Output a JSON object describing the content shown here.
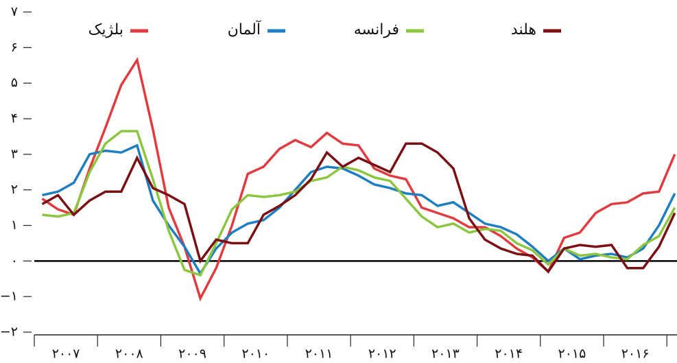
{
  "chart_data": {
    "type": "line",
    "x": [
      2007.125,
      2007.375,
      2007.625,
      2007.875,
      2008.125,
      2008.375,
      2008.625,
      2008.875,
      2009.125,
      2009.375,
      2009.625,
      2009.875,
      2010.125,
      2010.375,
      2010.625,
      2010.875,
      2011.125,
      2011.375,
      2011.625,
      2011.875,
      2012.125,
      2012.375,
      2012.625,
      2012.875,
      2013.125,
      2013.375,
      2013.625,
      2013.875,
      2014.125,
      2014.375,
      2014.625,
      2014.875,
      2015.125,
      2015.375,
      2015.625,
      2015.875,
      2016.125,
      2016.375,
      2016.625,
      2016.875,
      2017.125
    ],
    "series": [
      {
        "name": "بلژیک",
        "color": "#e13a3f",
        "values": [
          1.75,
          1.45,
          1.3,
          2.6,
          3.75,
          4.95,
          5.65,
          3.7,
          1.5,
          0.4,
          -1.05,
          -0.2,
          1.0,
          2.45,
          2.65,
          3.15,
          3.4,
          3.2,
          3.6,
          3.3,
          3.25,
          2.6,
          2.4,
          2.3,
          1.5,
          1.35,
          1.2,
          0.95,
          0.95,
          0.7,
          0.35,
          0.1,
          -0.3,
          0.65,
          0.8,
          1.35,
          1.6,
          1.65,
          1.9,
          1.95,
          3.0
        ]
      },
      {
        "name": "آلمان",
        "color": "#1f7dc1",
        "values": [
          1.85,
          1.95,
          2.2,
          3.0,
          3.1,
          3.05,
          3.25,
          1.7,
          1.0,
          0.4,
          -0.35,
          0.35,
          0.8,
          1.05,
          1.15,
          1.5,
          2.0,
          2.5,
          2.65,
          2.6,
          2.4,
          2.15,
          2.05,
          1.9,
          1.85,
          1.55,
          1.65,
          1.35,
          1.05,
          0.95,
          0.75,
          0.4,
          0.0,
          0.35,
          0.05,
          0.15,
          0.2,
          0.1,
          0.35,
          1.0,
          1.9
        ]
      },
      {
        "name": "فرانسه",
        "color": "#8cc63f",
        "values": [
          1.3,
          1.25,
          1.35,
          2.5,
          3.3,
          3.65,
          3.65,
          2.3,
          0.85,
          -0.25,
          -0.4,
          0.5,
          1.45,
          1.85,
          1.8,
          1.85,
          1.95,
          2.25,
          2.35,
          2.65,
          2.55,
          2.35,
          2.25,
          1.75,
          1.25,
          0.95,
          1.05,
          0.8,
          0.9,
          0.85,
          0.5,
          0.3,
          -0.1,
          0.35,
          0.15,
          0.2,
          0.1,
          0.05,
          0.45,
          0.7,
          1.5
        ]
      },
      {
        "name": "هلند",
        "color": "#7a1014",
        "values": [
          1.6,
          1.85,
          1.3,
          1.7,
          1.95,
          1.95,
          2.9,
          2.05,
          1.85,
          1.6,
          0.0,
          0.6,
          0.5,
          0.5,
          1.3,
          1.55,
          1.85,
          2.3,
          3.05,
          2.65,
          2.9,
          2.7,
          2.5,
          3.3,
          3.3,
          3.05,
          2.6,
          1.2,
          0.6,
          0.35,
          0.2,
          0.15,
          -0.3,
          0.35,
          0.45,
          0.4,
          0.45,
          -0.2,
          -0.2,
          0.4,
          1.35
        ]
      }
    ],
    "xlim": [
      2007,
      2017.16
    ],
    "xticks": [
      {
        "value": 2007.5,
        "label": "۲۰۰۷"
      },
      {
        "value": 2008.5,
        "label": "۲۰۰۸"
      },
      {
        "value": 2009.5,
        "label": "۲۰۰۹"
      },
      {
        "value": 2010.5,
        "label": "۲۰۱۰"
      },
      {
        "value": 2011.5,
        "label": "۲۰۱۱"
      },
      {
        "value": 2012.5,
        "label": "۲۰۱۲"
      },
      {
        "value": 2013.5,
        "label": "۲۰۱۳"
      },
      {
        "value": 2014.5,
        "label": "۲۰۱۴"
      },
      {
        "value": 2015.5,
        "label": "۲۰۱۵"
      },
      {
        "value": 2016.5,
        "label": "۲۰۱۶"
      }
    ],
    "ylim": [
      -2,
      7
    ],
    "yticks": [
      {
        "value": 7,
        "label": "۷"
      },
      {
        "value": 6,
        "label": "۶"
      },
      {
        "value": 5,
        "label": "۵"
      },
      {
        "value": 4,
        "label": "۴"
      },
      {
        "value": 3,
        "label": "۳"
      },
      {
        "value": 2,
        "label": "۲"
      },
      {
        "value": 1,
        "label": "۱"
      },
      {
        "value": 0,
        "label": "۰"
      },
      {
        "value": -1,
        "label": "−۱"
      },
      {
        "value": -2,
        "label": "−۲"
      }
    ],
    "legend": "top"
  }
}
